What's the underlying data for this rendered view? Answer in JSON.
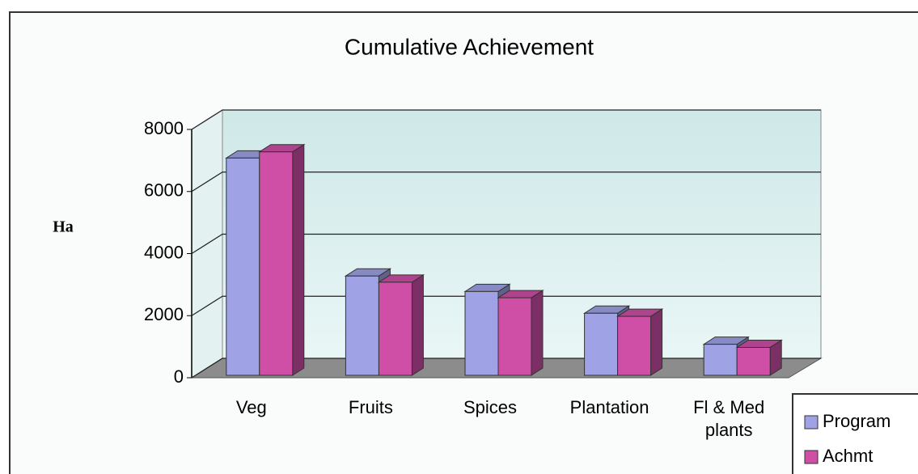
{
  "chart_data": {
    "type": "bar3d",
    "title": "Cumulative Achievement",
    "y_label": "Ha",
    "categories": [
      "Veg",
      "Fruits",
      "Spices",
      "Plantation",
      "Fl & Med plants"
    ],
    "series": [
      {
        "name": "Program",
        "color": "#9fa3e6",
        "values": [
          7000,
          3200,
          2700,
          2000,
          1000
        ]
      },
      {
        "name": "Achmt",
        "color": "#cf4fa6",
        "values": [
          7200,
          3000,
          2500,
          1900,
          900
        ]
      }
    ],
    "ylim": [
      0,
      8000
    ],
    "yticks": [
      0,
      2000,
      4000,
      6000,
      8000
    ],
    "grid": true,
    "legend": "bottom-right"
  }
}
